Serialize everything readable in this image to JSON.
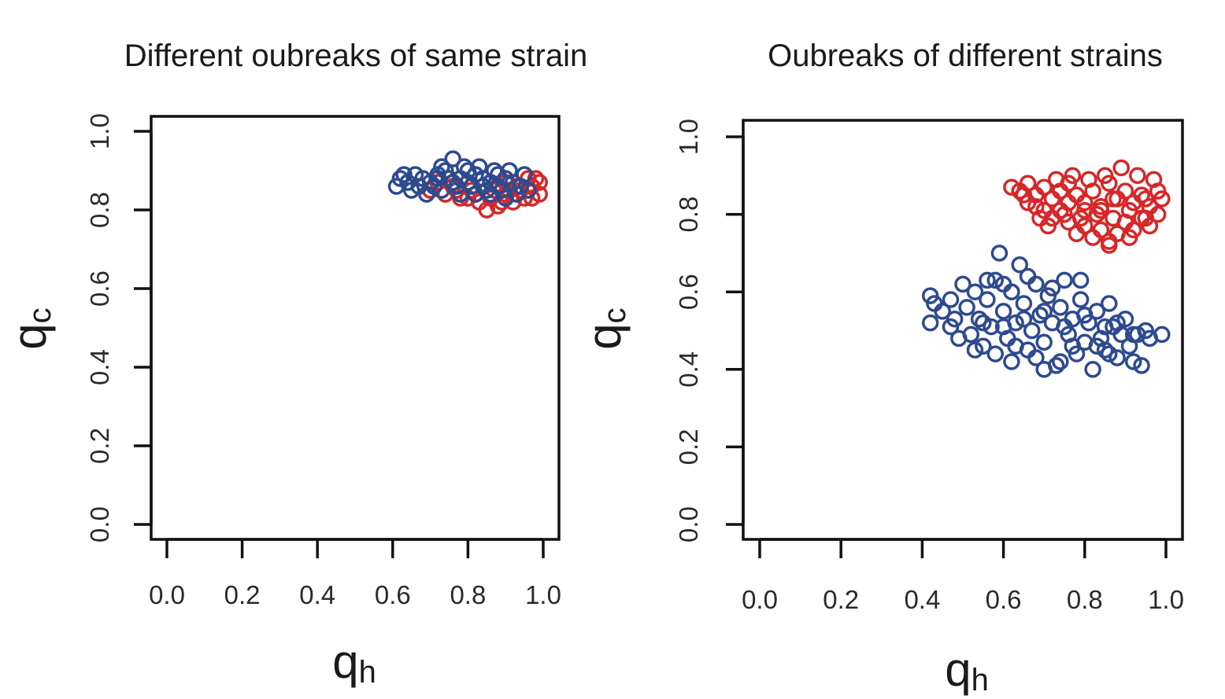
{
  "chart_data": [
    {
      "type": "scatter",
      "title": "Different oubreaks of same strain",
      "xlabel": "q",
      "xlabel_sub": "h",
      "ylabel": "q",
      "ylabel_sub": "c",
      "xlim": [
        0,
        1
      ],
      "ylim": [
        0,
        1
      ],
      "xticks": [
        "0.0",
        "0.2",
        "0.4",
        "0.6",
        "0.8",
        "1.0"
      ],
      "yticks": [
        "0.0",
        "0.2",
        "0.4",
        "0.6",
        "0.8",
        "1.0"
      ],
      "grid": false,
      "marker": "open-circle",
      "series": [
        {
          "color": "#d62728",
          "points": [
            [
              0.7,
              0.85
            ],
            [
              0.74,
              0.84
            ],
            [
              0.78,
              0.83
            ],
            [
              0.82,
              0.84
            ],
            [
              0.86,
              0.83
            ],
            [
              0.9,
              0.84
            ],
            [
              0.94,
              0.85
            ],
            [
              0.97,
              0.86
            ],
            [
              0.99,
              0.84
            ],
            [
              0.98,
              0.88
            ],
            [
              0.96,
              0.88
            ],
            [
              0.92,
              0.82
            ],
            [
              0.88,
              0.81
            ],
            [
              0.85,
              0.8
            ],
            [
              0.8,
              0.83
            ],
            [
              0.76,
              0.86
            ],
            [
              0.72,
              0.87
            ],
            [
              0.84,
              0.86
            ],
            [
              0.9,
              0.87
            ],
            [
              0.93,
              0.86
            ],
            [
              0.87,
              0.85
            ],
            [
              0.81,
              0.85
            ],
            [
              0.95,
              0.83
            ],
            [
              0.99,
              0.87
            ],
            [
              0.83,
              0.82
            ],
            [
              0.89,
              0.82
            ],
            [
              0.91,
              0.85
            ],
            [
              0.77,
              0.85
            ],
            [
              0.86,
              0.87
            ],
            [
              0.97,
              0.83
            ]
          ]
        },
        {
          "color": "#2e4a8f",
          "points": [
            [
              0.61,
              0.86
            ],
            [
              0.62,
              0.88
            ],
            [
              0.64,
              0.87
            ],
            [
              0.66,
              0.89
            ],
            [
              0.68,
              0.88
            ],
            [
              0.7,
              0.87
            ],
            [
              0.72,
              0.89
            ],
            [
              0.74,
              0.9
            ],
            [
              0.76,
              0.93
            ],
            [
              0.78,
              0.88
            ],
            [
              0.8,
              0.87
            ],
            [
              0.82,
              0.89
            ],
            [
              0.84,
              0.88
            ],
            [
              0.86,
              0.87
            ],
            [
              0.88,
              0.86
            ],
            [
              0.9,
              0.88
            ],
            [
              0.92,
              0.87
            ],
            [
              0.94,
              0.86
            ],
            [
              0.96,
              0.85
            ],
            [
              0.95,
              0.89
            ],
            [
              0.91,
              0.9
            ],
            [
              0.87,
              0.9
            ],
            [
              0.83,
              0.91
            ],
            [
              0.79,
              0.91
            ],
            [
              0.75,
              0.88
            ],
            [
              0.71,
              0.86
            ],
            [
              0.67,
              0.86
            ],
            [
              0.65,
              0.85
            ],
            [
              0.69,
              0.84
            ],
            [
              0.73,
              0.85
            ],
            [
              0.77,
              0.86
            ],
            [
              0.81,
              0.86
            ],
            [
              0.85,
              0.85
            ],
            [
              0.89,
              0.85
            ],
            [
              0.93,
              0.84
            ],
            [
              0.63,
              0.89
            ],
            [
              0.73,
              0.91
            ],
            [
              0.78,
              0.84
            ],
            [
              0.82,
              0.84
            ],
            [
              0.86,
              0.84
            ],
            [
              0.9,
              0.83
            ],
            [
              0.8,
              0.9
            ],
            [
              0.88,
              0.89
            ],
            [
              0.72,
              0.88
            ],
            [
              0.76,
              0.87
            ],
            [
              0.84,
              0.86
            ]
          ]
        }
      ]
    },
    {
      "type": "scatter",
      "title": "Oubreaks of different strains",
      "xlabel": "q",
      "xlabel_sub": "h",
      "ylabel": "q",
      "ylabel_sub": "c",
      "xlim": [
        0,
        1
      ],
      "ylim": [
        0,
        1
      ],
      "xticks": [
        "0.0",
        "0.2",
        "0.4",
        "0.6",
        "0.8",
        "1.0"
      ],
      "yticks": [
        "0.0",
        "0.2",
        "0.4",
        "0.6",
        "0.8",
        "1.0"
      ],
      "grid": false,
      "marker": "open-circle",
      "series": [
        {
          "color": "#d62728",
          "points": [
            [
              0.62,
              0.87
            ],
            [
              0.64,
              0.86
            ],
            [
              0.66,
              0.88
            ],
            [
              0.68,
              0.85
            ],
            [
              0.7,
              0.87
            ],
            [
              0.72,
              0.84
            ],
            [
              0.74,
              0.86
            ],
            [
              0.76,
              0.88
            ],
            [
              0.78,
              0.85
            ],
            [
              0.8,
              0.83
            ],
            [
              0.82,
              0.86
            ],
            [
              0.84,
              0.82
            ],
            [
              0.86,
              0.88
            ],
            [
              0.88,
              0.84
            ],
            [
              0.9,
              0.86
            ],
            [
              0.92,
              0.83
            ],
            [
              0.94,
              0.85
            ],
            [
              0.96,
              0.82
            ],
            [
              0.98,
              0.86
            ],
            [
              0.99,
              0.84
            ],
            [
              0.98,
              0.8
            ],
            [
              0.96,
              0.77
            ],
            [
              0.94,
              0.79
            ],
            [
              0.92,
              0.76
            ],
            [
              0.9,
              0.78
            ],
            [
              0.88,
              0.75
            ],
            [
              0.86,
              0.73
            ],
            [
              0.84,
              0.76
            ],
            [
              0.82,
              0.74
            ],
            [
              0.8,
              0.77
            ],
            [
              0.78,
              0.75
            ],
            [
              0.76,
              0.78
            ],
            [
              0.74,
              0.81
            ],
            [
              0.72,
              0.79
            ],
            [
              0.7,
              0.81
            ],
            [
              0.68,
              0.82
            ],
            [
              0.66,
              0.83
            ],
            [
              0.71,
              0.77
            ],
            [
              0.75,
              0.8
            ],
            [
              0.79,
              0.79
            ],
            [
              0.83,
              0.8
            ],
            [
              0.87,
              0.79
            ],
            [
              0.91,
              0.81
            ],
            [
              0.95,
              0.79
            ],
            [
              0.89,
              0.92
            ],
            [
              0.85,
              0.9
            ],
            [
              0.81,
              0.89
            ],
            [
              0.77,
              0.9
            ],
            [
              0.73,
              0.89
            ],
            [
              0.93,
              0.9
            ],
            [
              0.97,
              0.89
            ],
            [
              0.69,
              0.79
            ],
            [
              0.86,
              0.72
            ],
            [
              0.84,
              0.81
            ],
            [
              0.8,
              0.81
            ],
            [
              0.91,
              0.74
            ],
            [
              0.76,
              0.83
            ],
            [
              0.95,
              0.84
            ],
            [
              0.65,
              0.85
            ],
            [
              0.87,
              0.84
            ]
          ]
        },
        {
          "color": "#2e4a8f",
          "points": [
            [
              0.42,
              0.59
            ],
            [
              0.43,
              0.57
            ],
            [
              0.42,
              0.52
            ],
            [
              0.45,
              0.55
            ],
            [
              0.47,
              0.58
            ],
            [
              0.48,
              0.53
            ],
            [
              0.5,
              0.62
            ],
            [
              0.51,
              0.56
            ],
            [
              0.52,
              0.49
            ],
            [
              0.53,
              0.6
            ],
            [
              0.54,
              0.53
            ],
            [
              0.55,
              0.46
            ],
            [
              0.56,
              0.58
            ],
            [
              0.57,
              0.51
            ],
            [
              0.58,
              0.63
            ],
            [
              0.59,
              0.7
            ],
            [
              0.6,
              0.55
            ],
            [
              0.61,
              0.48
            ],
            [
              0.62,
              0.6
            ],
            [
              0.63,
              0.52
            ],
            [
              0.64,
              0.67
            ],
            [
              0.65,
              0.57
            ],
            [
              0.66,
              0.45
            ],
            [
              0.67,
              0.5
            ],
            [
              0.68,
              0.62
            ],
            [
              0.69,
              0.54
            ],
            [
              0.7,
              0.47
            ],
            [
              0.71,
              0.59
            ],
            [
              0.72,
              0.52
            ],
            [
              0.73,
              0.41
            ],
            [
              0.74,
              0.56
            ],
            [
              0.75,
              0.63
            ],
            [
              0.76,
              0.49
            ],
            [
              0.77,
              0.53
            ],
            [
              0.78,
              0.44
            ],
            [
              0.79,
              0.58
            ],
            [
              0.8,
              0.47
            ],
            [
              0.81,
              0.52
            ],
            [
              0.82,
              0.4
            ],
            [
              0.83,
              0.55
            ],
            [
              0.84,
              0.48
            ],
            [
              0.85,
              0.45
            ],
            [
              0.86,
              0.57
            ],
            [
              0.87,
              0.51
            ],
            [
              0.88,
              0.43
            ],
            [
              0.89,
              0.49
            ],
            [
              0.9,
              0.53
            ],
            [
              0.91,
              0.46
            ],
            [
              0.92,
              0.42
            ],
            [
              0.93,
              0.49
            ],
            [
              0.94,
              0.41
            ],
            [
              0.95,
              0.5
            ],
            [
              0.96,
              0.48
            ],
            [
              0.99,
              0.49
            ],
            [
              0.49,
              0.48
            ],
            [
              0.53,
              0.45
            ],
            [
              0.58,
              0.44
            ],
            [
              0.63,
              0.46
            ],
            [
              0.68,
              0.43
            ],
            [
              0.74,
              0.42
            ],
            [
              0.6,
              0.62
            ],
            [
              0.66,
              0.64
            ],
            [
              0.72,
              0.61
            ],
            [
              0.79,
              0.63
            ],
            [
              0.56,
              0.63
            ],
            [
              0.47,
              0.51
            ],
            [
              0.86,
              0.44
            ],
            [
              0.62,
              0.42
            ],
            [
              0.7,
              0.4
            ],
            [
              0.77,
              0.46
            ],
            [
              0.83,
              0.46
            ],
            [
              0.75,
              0.51
            ],
            [
              0.65,
              0.53
            ],
            [
              0.55,
              0.52
            ],
            [
              0.88,
              0.52
            ],
            [
              0.92,
              0.49
            ],
            [
              0.8,
              0.54
            ],
            [
              0.85,
              0.51
            ],
            [
              0.7,
              0.55
            ],
            [
              0.6,
              0.51
            ]
          ]
        }
      ]
    }
  ]
}
